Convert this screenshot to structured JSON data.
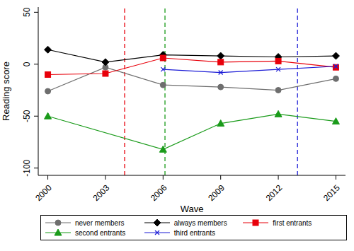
{
  "chart_data": {
    "type": "line",
    "x_label": "Wave",
    "y_label": "Reading score",
    "x": [
      2000,
      2003,
      2006,
      2009,
      2012,
      2015
    ],
    "xlim": [
      1999.5,
      2015.5
    ],
    "xticks": [
      2000,
      2003,
      2006,
      2009,
      2012,
      2015
    ],
    "ylim": [
      -107,
      55
    ],
    "yticks": [
      -100,
      -50,
      0,
      50
    ],
    "grid": false,
    "legend": "bottom",
    "series": [
      {
        "name": "never members",
        "color": "#6e6e6e",
        "marker": "circle",
        "line_style": "solid",
        "values": [
          -26,
          -3,
          -20,
          -22,
          -25,
          -14
        ]
      },
      {
        "name": "always members",
        "color": "#000000",
        "marker": "diamond",
        "line_style": "solid",
        "values": [
          14,
          2,
          9,
          8,
          7,
          8
        ]
      },
      {
        "name": "first entrants",
        "color": "#e8000b",
        "marker": "square",
        "line_style": "solid",
        "values": [
          -10,
          -9,
          6,
          2,
          3,
          -3
        ]
      },
      {
        "name": "second entrants",
        "color": "#1a9b1a",
        "marker": "triangle",
        "line_style": "solid",
        "values": [
          -50,
          null,
          -82,
          -57,
          -48,
          -55
        ]
      },
      {
        "name": "third entrants",
        "color": "#1b1bd6",
        "marker": "x",
        "line_style": "solid",
        "values": [
          null,
          null,
          -5,
          -8,
          -5,
          -2
        ]
      }
    ],
    "vlines": [
      {
        "x": 2004,
        "color": "#e8000b",
        "line_style": "dashed"
      },
      {
        "x": 2006.1,
        "color": "#1a9b1a",
        "line_style": "dashed"
      },
      {
        "x": 2013,
        "color": "#1b1bd6",
        "line_style": "dashed"
      }
    ]
  }
}
